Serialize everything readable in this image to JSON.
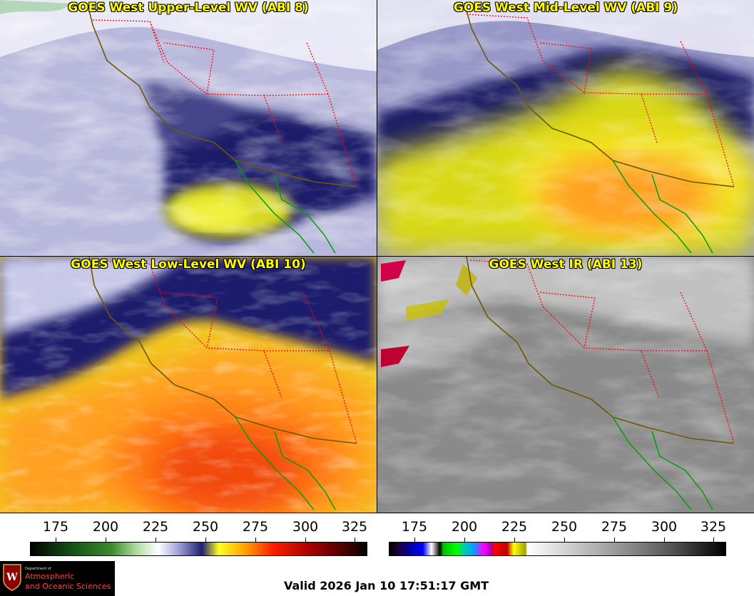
{
  "panels": [
    {
      "title": "GOES West Upper-Level WV (ABI 8)"
    },
    {
      "title": "GOES West Mid-Level WV (ABI 9)"
    },
    {
      "title": "GOES West Low-Level WV (ABI 10)"
    },
    {
      "title": "GOES West IR (ABI 13)"
    }
  ],
  "colorbar_wv": {
    "ticks": [
      "175",
      "200",
      "225",
      "250",
      "275",
      "300",
      "325"
    ]
  },
  "colorbar_ir": {
    "ticks": [
      "175",
      "200",
      "225",
      "250",
      "275",
      "300",
      "325"
    ]
  },
  "logo": {
    "dept": "Department of",
    "line1": "Atmospheric",
    "line2": "and Oceanic Sciences"
  },
  "valid_time": "Valid 2026 Jan 10 17:51:17 GMT",
  "colors": {
    "title_text": "#ffff00",
    "coast": "#6b5a00",
    "state_borders": "#ff0000",
    "mexico_coast": "#00a000"
  }
}
